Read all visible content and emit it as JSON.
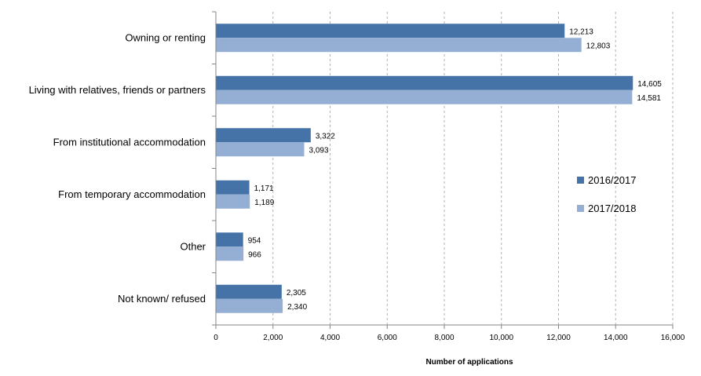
{
  "chart_data": {
    "type": "bar",
    "orientation": "horizontal",
    "categories": [
      "Owning or renting",
      "Living with relatives, friends or partners",
      "From institutional accommodation",
      "From temporary accommodation",
      "Other",
      "Not known/ refused"
    ],
    "series": [
      {
        "name": "2016/2017",
        "color": "#4572A7",
        "values": [
          12213,
          14605,
          3322,
          1171,
          954,
          2305
        ],
        "labels": [
          "12,213",
          "14,605",
          "3,322",
          "1,171",
          "954",
          "2,305"
        ]
      },
      {
        "name": "2017/2018",
        "color": "#95AFD4",
        "values": [
          12803,
          14581,
          3093,
          1189,
          966,
          2340
        ],
        "labels": [
          "12,803",
          "14,581",
          "3,093",
          "1,189",
          "966",
          "2,340"
        ]
      }
    ],
    "xlabel": "Number of applications",
    "xlim": [
      0,
      16000
    ],
    "xticks": [
      0,
      2000,
      4000,
      6000,
      8000,
      10000,
      12000,
      14000,
      16000
    ],
    "xtick_labels": [
      "0",
      "2,000",
      "4,000",
      "6,000",
      "8,000",
      "10,000",
      "12,000",
      "14,000",
      "16,000"
    ],
    "grid": "vertical dashed",
    "legend_position": "right"
  }
}
